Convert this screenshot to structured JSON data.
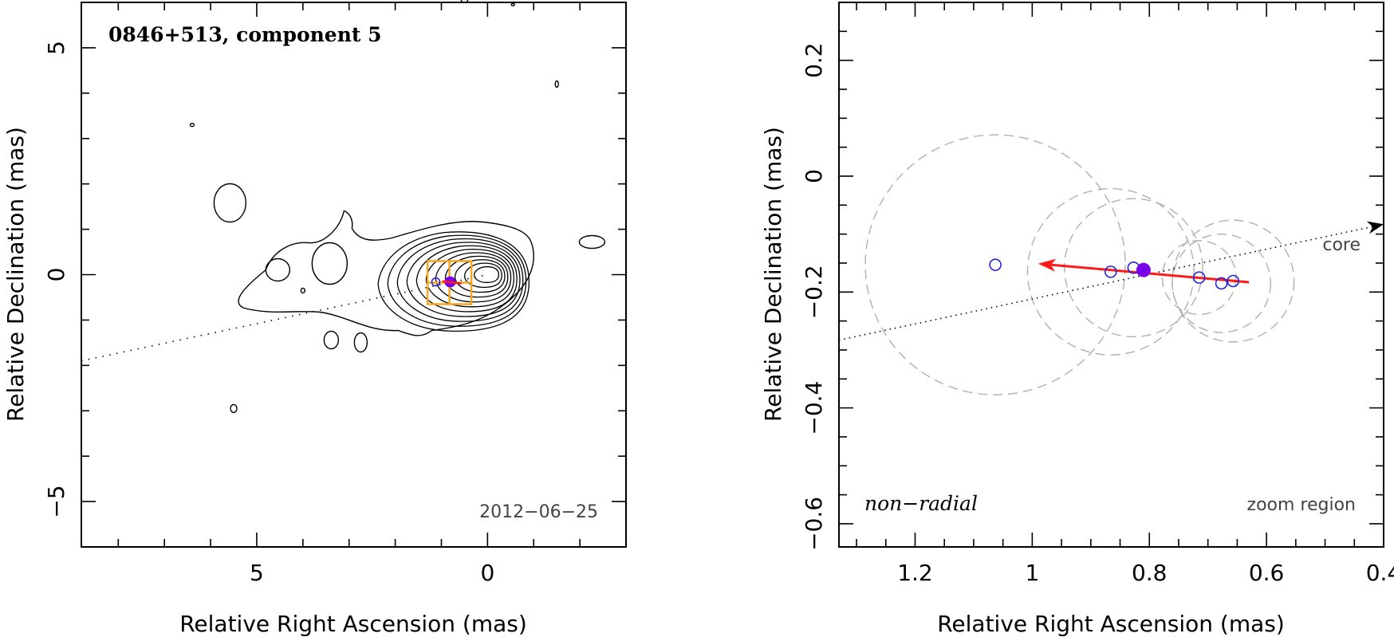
{
  "chart_data": [
    {
      "type": "contour",
      "title": "0846+513, component 5",
      "date_label": "2012−06−25",
      "xlabel": "Relative Right Ascension (mas)",
      "ylabel": "Relative Declination (mas)",
      "xlim": [
        8.8,
        -3.0
      ],
      "ylim": [
        -6.0,
        6.0
      ],
      "xticks": [
        5,
        0
      ],
      "xtick_labels": [
        "5",
        "0"
      ],
      "yticks": [
        5,
        0,
        -5
      ],
      "ytick_labels": [
        "5",
        "0",
        "−5"
      ],
      "contour_center": [
        0.0,
        0.0
      ],
      "component_position": [
        0.81,
        -0.16
      ],
      "zoom_box": {
        "ra_range": [
          1.3,
          0.35
        ],
        "dec_range": [
          -0.65,
          0.3
        ]
      },
      "inner_ridge_axis": {
        "from": [
          8.8,
          -1.9
        ],
        "to": [
          0.0,
          0.0
        ]
      }
    },
    {
      "type": "scatter",
      "xlabel": "Relative Right Ascension (mas)",
      "ylabel": "Relative Declination (mas)",
      "xlim": [
        1.33,
        0.4
      ],
      "ylim": [
        -0.64,
        0.3
      ],
      "xticks": [
        1.2,
        1.0,
        0.8,
        0.6,
        0.4
      ],
      "xtick_labels": [
        "1.2",
        "1",
        "0.8",
        "0.6",
        "0.4"
      ],
      "yticks": [
        0.2,
        0.0,
        -0.2,
        -0.4,
        -0.6
      ],
      "ytick_labels": [
        "0.2",
        "0",
        "−0.2",
        "−0.4",
        "−0.6"
      ],
      "label_core": "core",
      "label_motion": "non−radial",
      "label_zoom": "zoom region",
      "open_points": [
        {
          "x": 1.063,
          "y": -0.153
        },
        {
          "x": 0.866,
          "y": -0.165
        },
        {
          "x": 0.827,
          "y": -0.158
        },
        {
          "x": 0.715,
          "y": -0.175
        },
        {
          "x": 0.677,
          "y": -0.185
        },
        {
          "x": 0.657,
          "y": -0.181
        }
      ],
      "filled_point": {
        "x": 0.81,
        "y": -0.162
      },
      "velocity_vector": {
        "from": [
          0.63,
          -0.183
        ],
        "to": [
          0.99,
          -0.151
        ]
      },
      "radial_direction": {
        "from": [
          1.33,
          -0.283
        ],
        "to": [
          0.4,
          -0.083
        ]
      },
      "error_circles": [
        {
          "x": 1.063,
          "y": -0.153,
          "r": 0.222
        },
        {
          "x": 0.866,
          "y": -0.165,
          "r": 0.142
        },
        {
          "x": 0.827,
          "y": -0.158,
          "r": 0.118
        },
        {
          "x": 0.715,
          "y": -0.175,
          "r": 0.063
        },
        {
          "x": 0.677,
          "y": -0.185,
          "r": 0.084
        },
        {
          "x": 0.657,
          "y": -0.181,
          "r": 0.104
        }
      ],
      "colors": {
        "open_points": "#2222dd",
        "filled_point": "#7a00e8",
        "vector": "#ff1a1a",
        "circles": "#b0b0b0"
      }
    }
  ]
}
